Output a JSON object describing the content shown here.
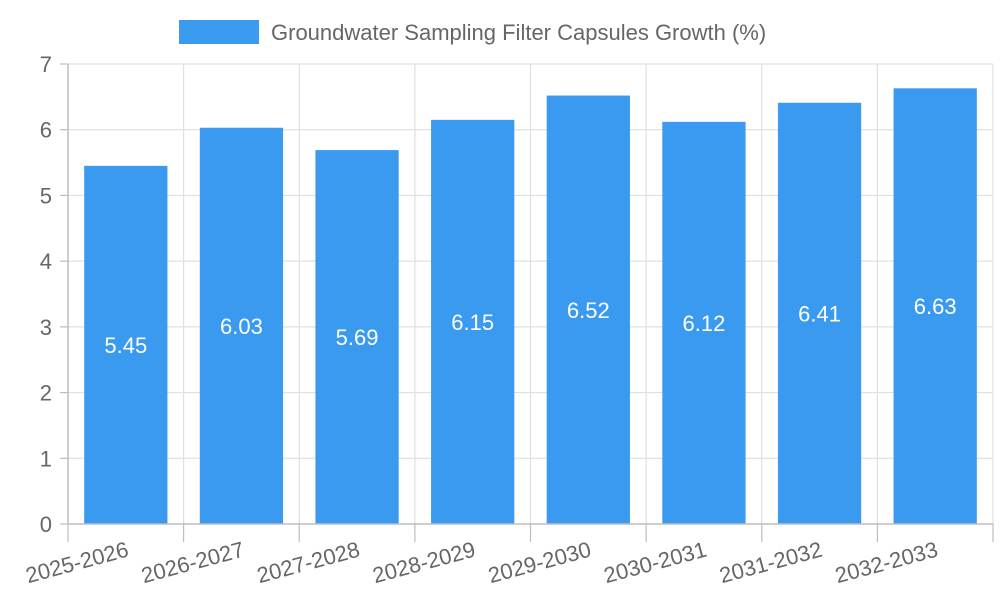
{
  "chart_data": {
    "type": "bar",
    "categories": [
      "2025-2026",
      "2026-2027",
      "2027-2028",
      "2028-2029",
      "2029-2030",
      "2030-2031",
      "2031-2032",
      "2032-2033"
    ],
    "series": [
      {
        "name": "Groundwater Sampling Filter Capsules Growth (%)",
        "values": [
          5.45,
          6.03,
          5.69,
          6.15,
          6.52,
          6.12,
          6.41,
          6.63
        ],
        "color": "#3a9af0"
      }
    ],
    "data_labels": [
      "5.45",
      "6.03",
      "5.69",
      "6.15",
      "6.52",
      "6.12",
      "6.41",
      "6.63"
    ],
    "y_ticks": [
      "0",
      "1",
      "2",
      "3",
      "4",
      "5",
      "6",
      "7"
    ],
    "ylim": [
      0,
      7
    ],
    "grid": true,
    "legend": "top-center"
  }
}
